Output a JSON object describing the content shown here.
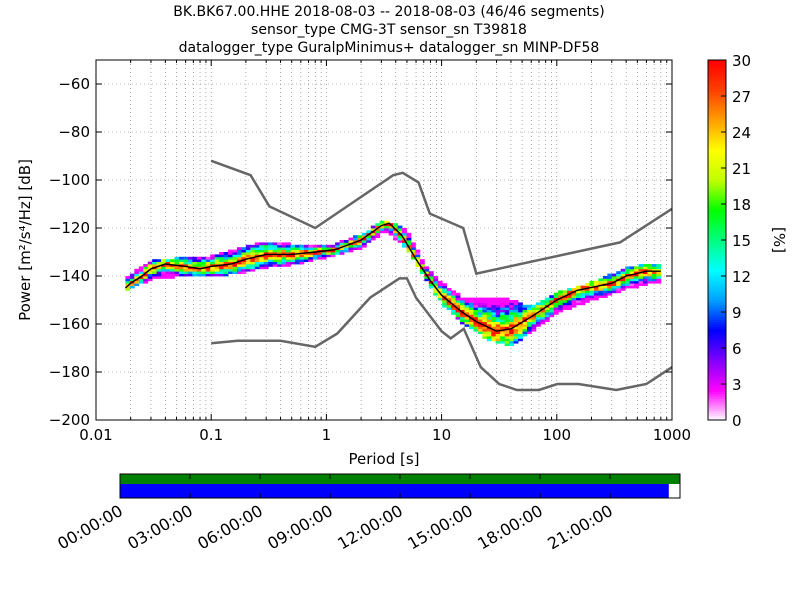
{
  "title_lines": [
    "BK.BK67.00.HHE   2018-08-03 -- 2018-08-03  (46/46 segments)",
    "sensor_type CMG-3T sensor_sn T39818",
    "datalogger_type GuralpMinimus+ datalogger_sn MINP-DF58"
  ],
  "chart_data": {
    "type": "heatmap",
    "xlabel": "Period [s]",
    "ylabel": "Power [m²/s⁴/Hz] [dB]",
    "x_scale": "log",
    "xlim": [
      0.01,
      1000
    ],
    "ylim": [
      -200,
      -50
    ],
    "x_ticks": [
      0.01,
      0.1,
      1,
      10,
      100,
      1000
    ],
    "x_tick_labels": [
      "0.01",
      "0.1",
      "1",
      "10",
      "100",
      "1000"
    ],
    "y_ticks": [
      -200,
      -180,
      -160,
      -140,
      -120,
      -100,
      -80,
      -60
    ],
    "y_tick_labels": [
      "−200",
      "−180",
      "−160",
      "−140",
      "−120",
      "−100",
      "−80",
      "−60"
    ],
    "grid": "dotted",
    "colorbar": {
      "label": "[%]",
      "range": [
        0,
        30
      ],
      "ticks": [
        "0",
        "3",
        "6",
        "9",
        "12",
        "15",
        "18",
        "21",
        "24",
        "27",
        "30"
      ],
      "colors": [
        "#ffffff",
        "#ff00ff",
        "#8000ff",
        "#0000ff",
        "#00a0ff",
        "#00ffff",
        "#00ff80",
        "#00ff00",
        "#c0ff00",
        "#ffff00",
        "#ffa000",
        "#ff4000",
        "#ff0000"
      ]
    },
    "mode_curve": [
      [
        0.018,
        -145
      ],
      [
        0.02,
        -143
      ],
      [
        0.025,
        -140
      ],
      [
        0.03,
        -137
      ],
      [
        0.04,
        -135
      ],
      [
        0.06,
        -136
      ],
      [
        0.08,
        -137
      ],
      [
        0.1,
        -136
      ],
      [
        0.15,
        -135
      ],
      [
        0.2,
        -133
      ],
      [
        0.3,
        -131
      ],
      [
        0.5,
        -131
      ],
      [
        0.8,
        -130
      ],
      [
        1.2,
        -129
      ],
      [
        2,
        -125
      ],
      [
        3,
        -119
      ],
      [
        3.5,
        -118
      ],
      [
        4.5,
        -123
      ],
      [
        6,
        -133
      ],
      [
        8,
        -142
      ],
      [
        10,
        -148
      ],
      [
        15,
        -155
      ],
      [
        20,
        -159
      ],
      [
        30,
        -163
      ],
      [
        40,
        -162
      ],
      [
        60,
        -157
      ],
      [
        100,
        -150
      ],
      [
        150,
        -146
      ],
      [
        300,
        -143
      ],
      [
        400,
        -140
      ],
      [
        600,
        -138
      ],
      [
        800,
        -138
      ]
    ],
    "density_band_upper": [
      [
        0.018,
        -141
      ],
      [
        0.03,
        -134
      ],
      [
        0.05,
        -133
      ],
      [
        0.1,
        -132
      ],
      [
        0.2,
        -128
      ],
      [
        0.3,
        -126
      ],
      [
        0.5,
        -127
      ],
      [
        1,
        -128
      ],
      [
        2,
        -123
      ],
      [
        3.2,
        -117
      ],
      [
        5,
        -121
      ],
      [
        7,
        -135
      ],
      [
        10,
        -143
      ],
      [
        15,
        -149
      ],
      [
        25,
        -149
      ],
      [
        40,
        -150
      ],
      [
        60,
        -153
      ],
      [
        100,
        -147
      ],
      [
        200,
        -143
      ],
      [
        400,
        -137
      ],
      [
        600,
        -135
      ],
      [
        800,
        -135
      ]
    ],
    "density_band_lower": [
      [
        0.018,
        -146
      ],
      [
        0.03,
        -141
      ],
      [
        0.05,
        -140
      ],
      [
        0.1,
        -140
      ],
      [
        0.2,
        -138
      ],
      [
        0.3,
        -136
      ],
      [
        0.5,
        -135
      ],
      [
        1,
        -132
      ],
      [
        2,
        -128
      ],
      [
        3.2,
        -121
      ],
      [
        5,
        -128
      ],
      [
        7,
        -140
      ],
      [
        10,
        -151
      ],
      [
        15,
        -159
      ],
      [
        25,
        -166
      ],
      [
        40,
        -169
      ],
      [
        60,
        -163
      ],
      [
        100,
        -155
      ],
      [
        200,
        -150
      ],
      [
        400,
        -145
      ],
      [
        600,
        -143
      ],
      [
        800,
        -142
      ]
    ],
    "nhnm": [
      [
        0.1,
        -92
      ],
      [
        0.22,
        -98
      ],
      [
        0.32,
        -111
      ],
      [
        0.8,
        -120
      ],
      [
        3.8,
        -98
      ],
      [
        4.6,
        -97
      ],
      [
        6.3,
        -101
      ],
      [
        7.9,
        -114
      ],
      [
        15.4,
        -120
      ],
      [
        20,
        -139
      ],
      [
        354,
        -126
      ],
      [
        1000,
        -112
      ]
    ],
    "nlnm": [
      [
        0.1,
        -168
      ],
      [
        0.17,
        -167
      ],
      [
        0.4,
        -167
      ],
      [
        0.8,
        -169.5
      ],
      [
        1.24,
        -164
      ],
      [
        2.4,
        -149
      ],
      [
        4.3,
        -141
      ],
      [
        5,
        -141
      ],
      [
        6,
        -149
      ],
      [
        10,
        -163
      ],
      [
        12,
        -166
      ],
      [
        15.6,
        -162
      ],
      [
        21.9,
        -178
      ],
      [
        31.6,
        -185
      ],
      [
        45,
        -187.5
      ],
      [
        70,
        -187.5
      ],
      [
        101,
        -185
      ],
      [
        154,
        -185
      ],
      [
        328,
        -187.5
      ],
      [
        600,
        -185
      ],
      [
        1000,
        -178
      ]
    ]
  },
  "coverage": {
    "time_tick_labels": [
      "00:00:00",
      "03:00:00",
      "06:00:00",
      "09:00:00",
      "12:00:00",
      "15:00:00",
      "18:00:00",
      "21:00:00"
    ],
    "upper_bar_fraction": 1.0,
    "lower_bar_fraction": 0.98,
    "upper_color": "#008000",
    "lower_color": "#0000ff"
  }
}
